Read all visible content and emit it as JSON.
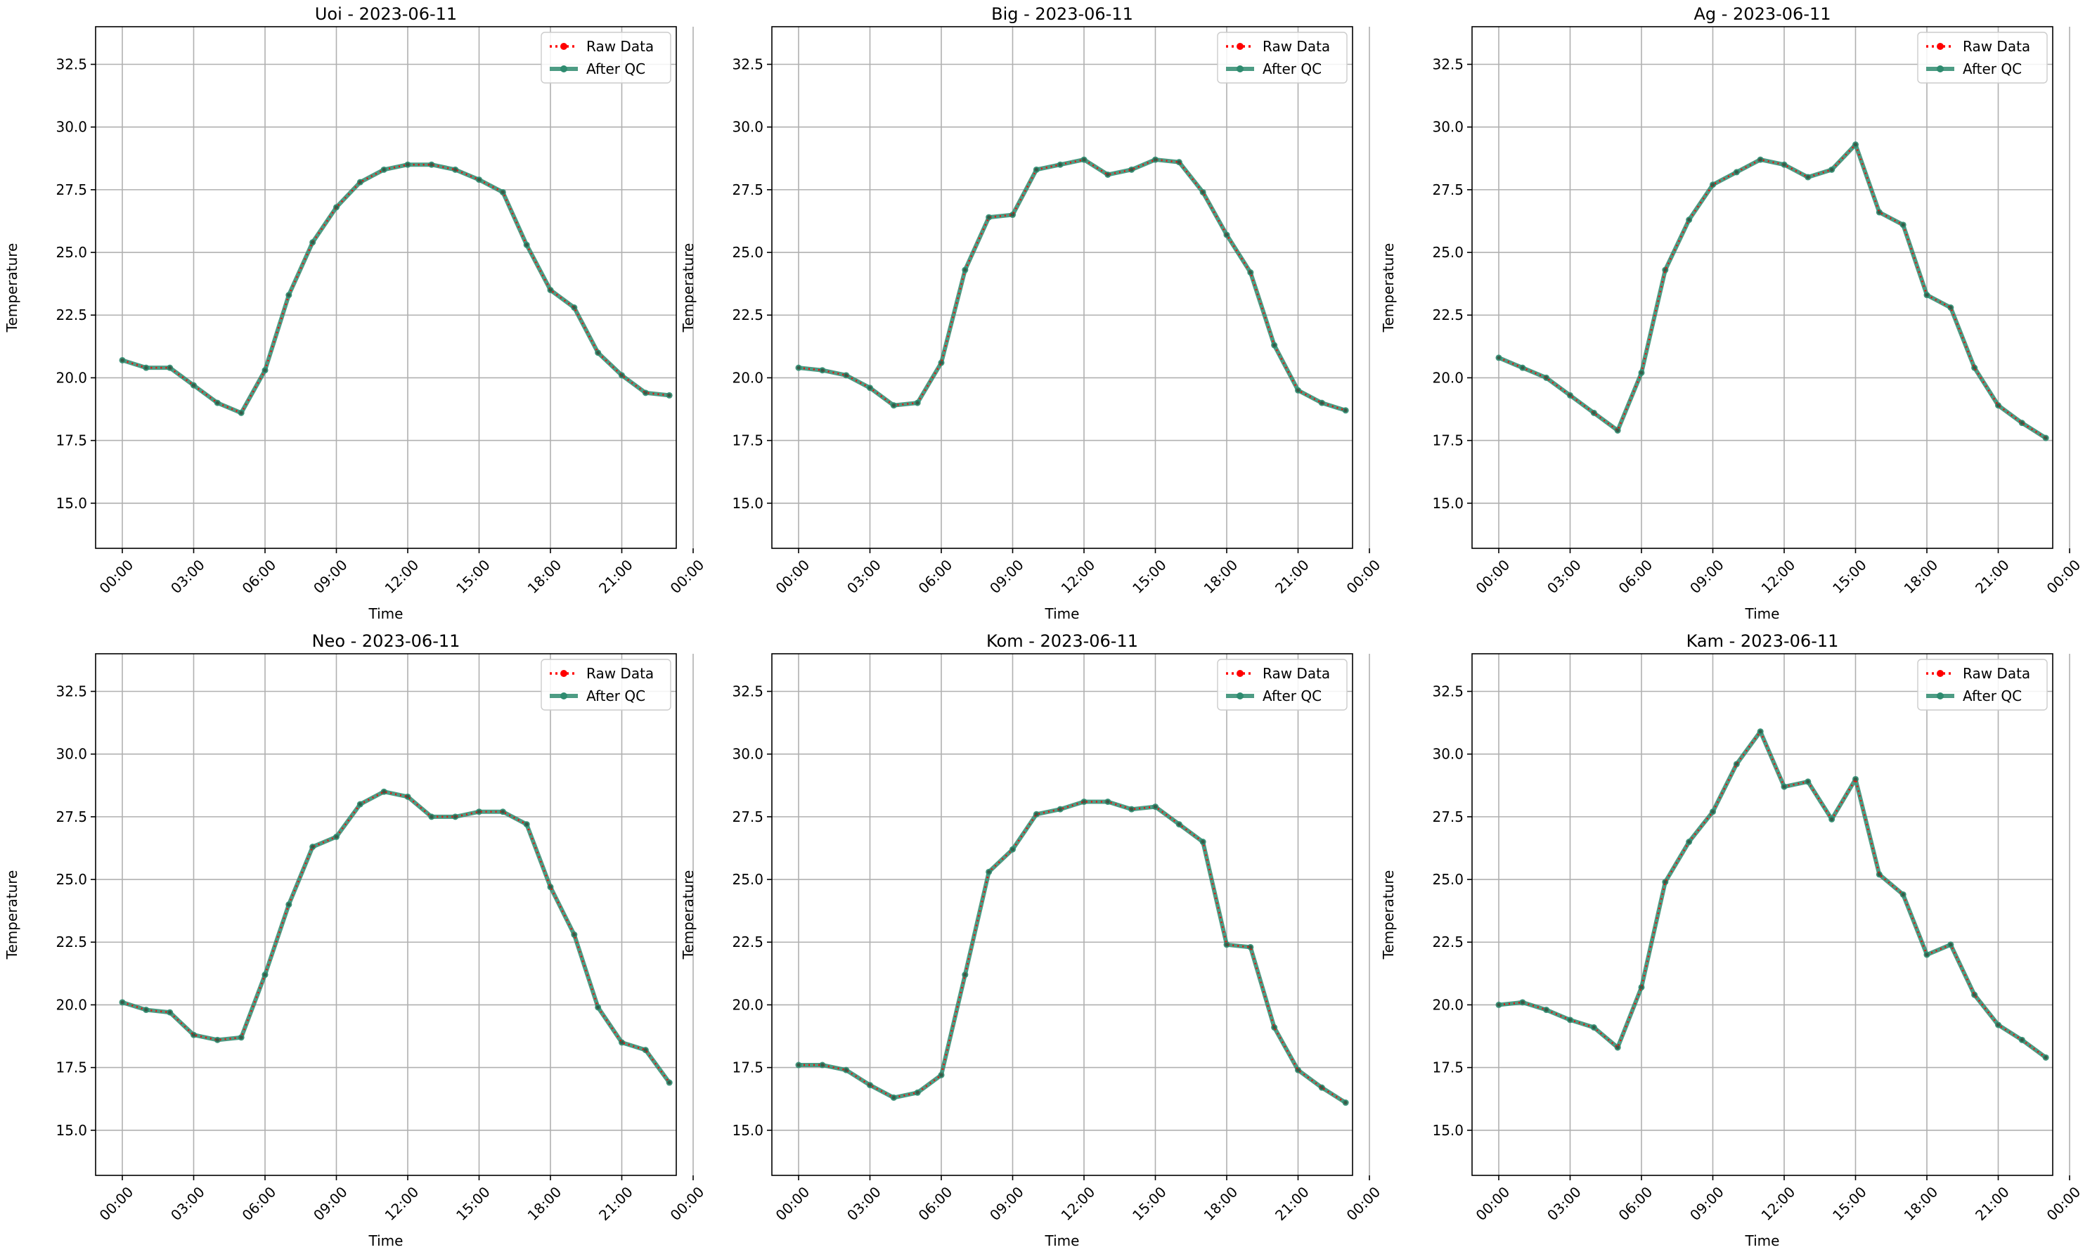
{
  "chart_data": [
    {
      "type": "line",
      "title": "Uoi - 2023-06-11",
      "xlabel": "Time",
      "ylabel": "Temperature",
      "x_ticks": [
        "00:00",
        "03:00",
        "06:00",
        "09:00",
        "12:00",
        "15:00",
        "18:00",
        "21:00",
        "00:00"
      ],
      "y_ticks": [
        "15.0",
        "17.5",
        "20.0",
        "22.5",
        "25.0",
        "27.5",
        "30.0",
        "32.5"
      ],
      "ylim": [
        13.2,
        34.0
      ],
      "grid": true,
      "legend_position": "top-right",
      "series": [
        {
          "name": "Raw Data",
          "color": "#ff0000",
          "values": [
            20.7,
            20.4,
            20.4,
            19.7,
            19.0,
            18.6,
            20.3,
            23.3,
            25.4,
            26.8,
            27.8,
            28.3,
            28.5,
            28.5,
            28.3,
            27.9,
            27.4,
            25.3,
            23.5,
            22.8,
            21.0,
            20.1,
            19.4,
            19.3
          ]
        },
        {
          "name": "After QC",
          "color": "#2e8b6f",
          "values": [
            20.7,
            20.4,
            20.4,
            19.7,
            19.0,
            18.6,
            20.3,
            23.3,
            25.4,
            26.8,
            27.8,
            28.3,
            28.5,
            28.5,
            28.3,
            27.9,
            27.4,
            25.3,
            23.5,
            22.8,
            21.0,
            20.1,
            19.4,
            19.3
          ]
        }
      ]
    },
    {
      "type": "line",
      "title": "Big - 2023-06-11",
      "xlabel": "Time",
      "ylabel": "Temperature",
      "x_ticks": [
        "00:00",
        "03:00",
        "06:00",
        "09:00",
        "12:00",
        "15:00",
        "18:00",
        "21:00",
        "00:00"
      ],
      "y_ticks": [
        "15.0",
        "17.5",
        "20.0",
        "22.5",
        "25.0",
        "27.5",
        "30.0",
        "32.5"
      ],
      "ylim": [
        13.2,
        34.0
      ],
      "grid": true,
      "legend_position": "top-right",
      "series": [
        {
          "name": "Raw Data",
          "color": "#ff0000",
          "values": [
            20.4,
            20.3,
            20.1,
            19.6,
            18.9,
            19.0,
            20.6,
            24.3,
            26.4,
            26.5,
            28.3,
            28.5,
            28.7,
            28.1,
            28.3,
            28.7,
            28.6,
            27.4,
            25.7,
            24.2,
            21.3,
            19.5,
            19.0,
            18.7
          ]
        },
        {
          "name": "After QC",
          "color": "#2e8b6f",
          "values": [
            20.4,
            20.3,
            20.1,
            19.6,
            18.9,
            19.0,
            20.6,
            24.3,
            26.4,
            26.5,
            28.3,
            28.5,
            28.7,
            28.1,
            28.3,
            28.7,
            28.6,
            27.4,
            25.7,
            24.2,
            21.3,
            19.5,
            19.0,
            18.7
          ]
        }
      ]
    },
    {
      "type": "line",
      "title": "Ag - 2023-06-11",
      "xlabel": "Time",
      "ylabel": "Temperature",
      "x_ticks": [
        "00:00",
        "03:00",
        "06:00",
        "09:00",
        "12:00",
        "15:00",
        "18:00",
        "21:00",
        "00:00"
      ],
      "y_ticks": [
        "15.0",
        "17.5",
        "20.0",
        "22.5",
        "25.0",
        "27.5",
        "30.0",
        "32.5"
      ],
      "ylim": [
        13.2,
        34.0
      ],
      "grid": true,
      "legend_position": "top-right",
      "series": [
        {
          "name": "Raw Data",
          "color": "#ff0000",
          "values": [
            20.8,
            20.4,
            20.0,
            19.3,
            18.6,
            17.9,
            20.2,
            24.3,
            26.3,
            27.7,
            28.2,
            28.7,
            28.5,
            28.0,
            28.3,
            29.3,
            26.6,
            26.1,
            23.3,
            22.8,
            20.4,
            18.9,
            18.2,
            17.6
          ]
        },
        {
          "name": "After QC",
          "color": "#2e8b6f",
          "values": [
            20.8,
            20.4,
            20.0,
            19.3,
            18.6,
            17.9,
            20.2,
            24.3,
            26.3,
            27.7,
            28.2,
            28.7,
            28.5,
            28.0,
            28.3,
            29.3,
            26.6,
            26.1,
            23.3,
            22.8,
            20.4,
            18.9,
            18.2,
            17.6
          ]
        }
      ]
    },
    {
      "type": "line",
      "title": "Neo - 2023-06-11",
      "xlabel": "Time",
      "ylabel": "Temperature",
      "x_ticks": [
        "00:00",
        "03:00",
        "06:00",
        "09:00",
        "12:00",
        "15:00",
        "18:00",
        "21:00",
        "00:00"
      ],
      "y_ticks": [
        "15.0",
        "17.5",
        "20.0",
        "22.5",
        "25.0",
        "27.5",
        "30.0",
        "32.5"
      ],
      "ylim": [
        13.2,
        34.0
      ],
      "grid": true,
      "legend_position": "top-right",
      "series": [
        {
          "name": "Raw Data",
          "color": "#ff0000",
          "values": [
            20.1,
            19.8,
            19.7,
            18.8,
            18.6,
            18.7,
            21.2,
            24.0,
            26.3,
            26.7,
            28.0,
            28.5,
            28.3,
            27.5,
            27.5,
            27.7,
            27.7,
            27.2,
            24.7,
            22.8,
            19.9,
            18.5,
            18.2,
            16.9
          ]
        },
        {
          "name": "After QC",
          "color": "#2e8b6f",
          "values": [
            20.1,
            19.8,
            19.7,
            18.8,
            18.6,
            18.7,
            21.2,
            24.0,
            26.3,
            26.7,
            28.0,
            28.5,
            28.3,
            27.5,
            27.5,
            27.7,
            27.7,
            27.2,
            24.7,
            22.8,
            19.9,
            18.5,
            18.2,
            16.9
          ]
        }
      ]
    },
    {
      "type": "line",
      "title": "Kom - 2023-06-11",
      "xlabel": "Time",
      "ylabel": "Temperature",
      "x_ticks": [
        "00:00",
        "03:00",
        "06:00",
        "09:00",
        "12:00",
        "15:00",
        "18:00",
        "21:00",
        "00:00"
      ],
      "y_ticks": [
        "15.0",
        "17.5",
        "20.0",
        "22.5",
        "25.0",
        "27.5",
        "30.0",
        "32.5"
      ],
      "ylim": [
        13.2,
        34.0
      ],
      "grid": true,
      "legend_position": "top-right",
      "series": [
        {
          "name": "Raw Data",
          "color": "#ff0000",
          "values": [
            17.6,
            17.6,
            17.4,
            16.8,
            16.3,
            16.5,
            17.2,
            21.2,
            25.3,
            26.2,
            27.6,
            27.8,
            28.1,
            28.1,
            27.8,
            27.9,
            27.2,
            26.5,
            22.4,
            22.3,
            19.1,
            17.4,
            16.7,
            16.1
          ]
        },
        {
          "name": "After QC",
          "color": "#2e8b6f",
          "values": [
            17.6,
            17.6,
            17.4,
            16.8,
            16.3,
            16.5,
            17.2,
            21.2,
            25.3,
            26.2,
            27.6,
            27.8,
            28.1,
            28.1,
            27.8,
            27.9,
            27.2,
            26.5,
            22.4,
            22.3,
            19.1,
            17.4,
            16.7,
            16.1
          ]
        }
      ]
    },
    {
      "type": "line",
      "title": "Kam - 2023-06-11",
      "xlabel": "Time",
      "ylabel": "Temperature",
      "x_ticks": [
        "00:00",
        "03:00",
        "06:00",
        "09:00",
        "12:00",
        "15:00",
        "18:00",
        "21:00",
        "00:00"
      ],
      "y_ticks": [
        "15.0",
        "17.5",
        "20.0",
        "22.5",
        "25.0",
        "27.5",
        "30.0",
        "32.5"
      ],
      "ylim": [
        13.2,
        34.0
      ],
      "grid": true,
      "legend_position": "top-right",
      "series": [
        {
          "name": "Raw Data",
          "color": "#ff0000",
          "values": [
            20.0,
            20.1,
            19.8,
            19.4,
            19.1,
            18.3,
            20.7,
            24.9,
            26.5,
            27.7,
            29.6,
            30.9,
            28.7,
            28.9,
            27.4,
            29.0,
            25.2,
            24.4,
            22.0,
            22.4,
            20.4,
            19.2,
            18.6,
            17.9
          ]
        },
        {
          "name": "After QC",
          "color": "#2e8b6f",
          "values": [
            20.0,
            20.1,
            19.8,
            19.4,
            19.1,
            18.3,
            20.7,
            24.9,
            26.5,
            27.7,
            29.6,
            30.9,
            28.7,
            28.9,
            27.4,
            29.0,
            25.2,
            24.4,
            22.0,
            22.4,
            20.4,
            19.2,
            18.6,
            17.9
          ]
        }
      ]
    }
  ]
}
